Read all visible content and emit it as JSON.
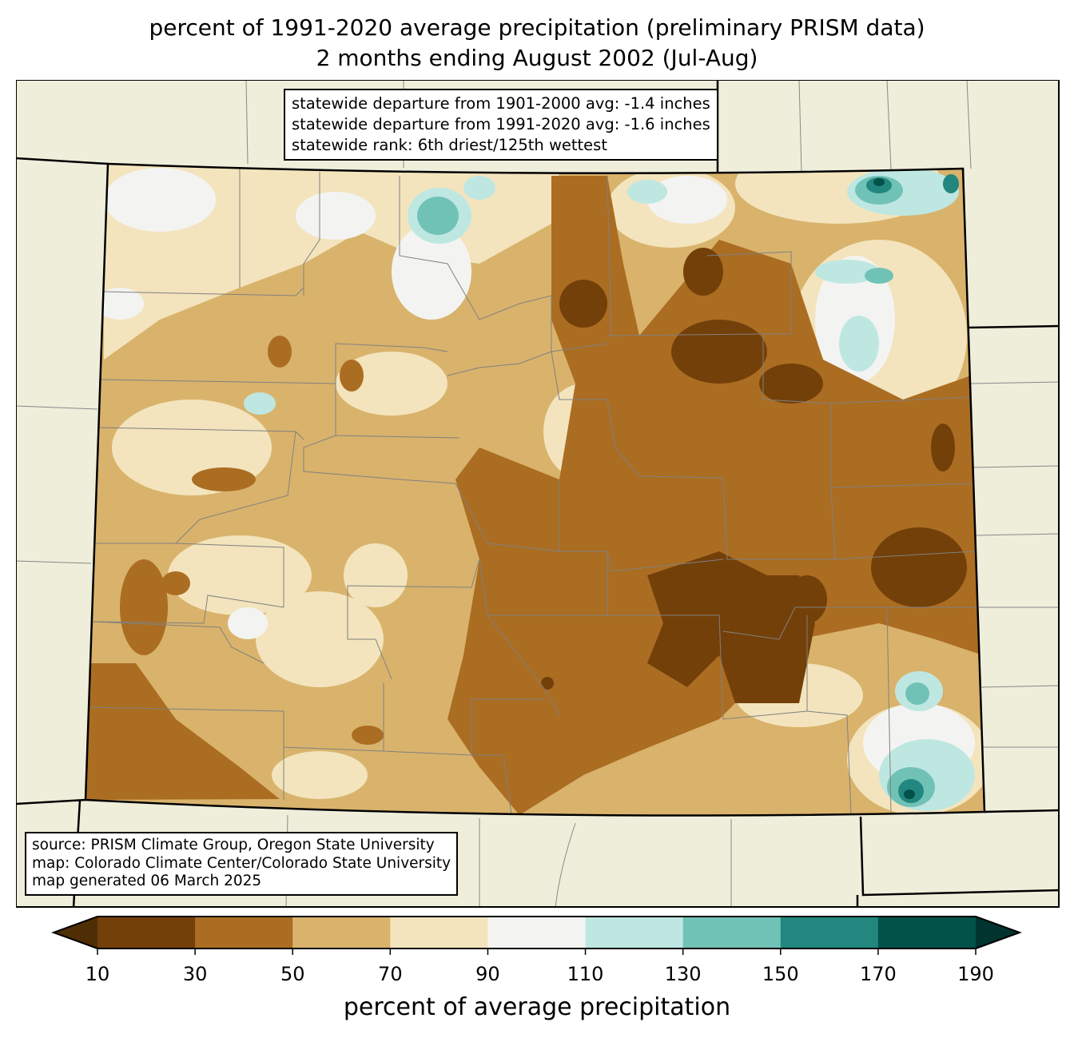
{
  "title": {
    "line1": "percent of 1991-2020 average precipitation (preliminary PRISM data)",
    "line2": "2 months ending August 2002 (Jul-Aug)"
  },
  "stats": {
    "line1": "statewide departure from 1901-2000 avg: -1.4 inches",
    "line2": "statewide departure from 1991-2020 avg: -1.6 inches",
    "line3": "statewide rank: 6th driest/125th wettest"
  },
  "source": {
    "line1": "source: PRISM Climate Group, Oregon State University",
    "line2": "map: Colorado Climate Center/Colorado State University",
    "line3": "map generated 06 March 2025"
  },
  "colorbar": {
    "label": "percent of average precipitation",
    "ticks": [
      "10",
      "30",
      "50",
      "70",
      "90",
      "110",
      "130",
      "150",
      "170",
      "190"
    ],
    "under_color": "#4f2e06",
    "over_color": "#01342f",
    "colors": [
      "#744009",
      "#ab6d22",
      "#d9b36c",
      "#f3e4bd",
      "#f3f4f2",
      "#bfe7e2",
      "#71c2b6",
      "#22877f",
      "#02524a"
    ]
  },
  "map": {
    "background": "#efeedb"
  }
}
